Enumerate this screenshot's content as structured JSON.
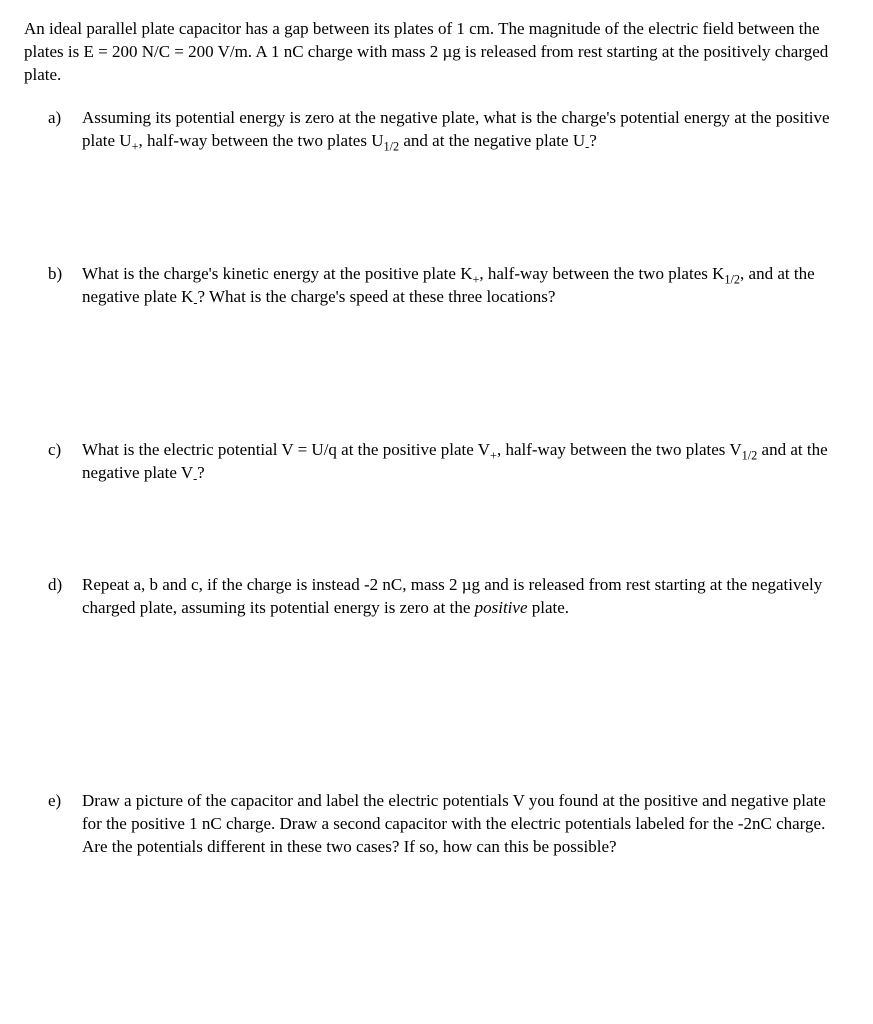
{
  "intro": "An ideal parallel plate capacitor has a gap between its plates of 1 cm.  The magnitude of the electric field between the plates is E = 200 N/C = 200 V/m.  A 1 nC charge with mass 2 µg is released from rest starting at the positively charged plate.",
  "problems": {
    "a": {
      "label": "a)",
      "text": "Assuming its potential energy is zero at the negative plate, what is the charge's potential energy at the positive plate U₊, half-way between the two plates U₁⸝₂ and at the negative plate U₋?"
    },
    "b": {
      "label": "b)",
      "text": "What is the charge's kinetic energy at the positive plate K₊, half-way between the two plates K₁⸝₂, and at the negative plate K₋?  What is the charge's speed at these three locations?"
    },
    "c": {
      "label": "c)",
      "text": "What is the electric potential V = U/q at the positive plate V₊, half-way between the two plates V₁⸝₂ and at the negative plate V₋?"
    },
    "d": {
      "label": "d)",
      "text_prefix": "Repeat a, b and c, if the charge is instead -2 nC, mass 2 µg and is released from rest starting at the negatively charged plate, assuming its potential energy is zero at the ",
      "italic_word": "positive",
      "text_suffix": " plate."
    },
    "e": {
      "label": "e)",
      "text": "Draw a picture of the capacitor and label the electric potentials V you found at the positive and negative plate for the positive 1 nC charge.  Draw a second capacitor with the electric potentials labeled for the -2nC charge.  Are the potentials different in these two cases?  If so, how can this be possible?"
    }
  }
}
